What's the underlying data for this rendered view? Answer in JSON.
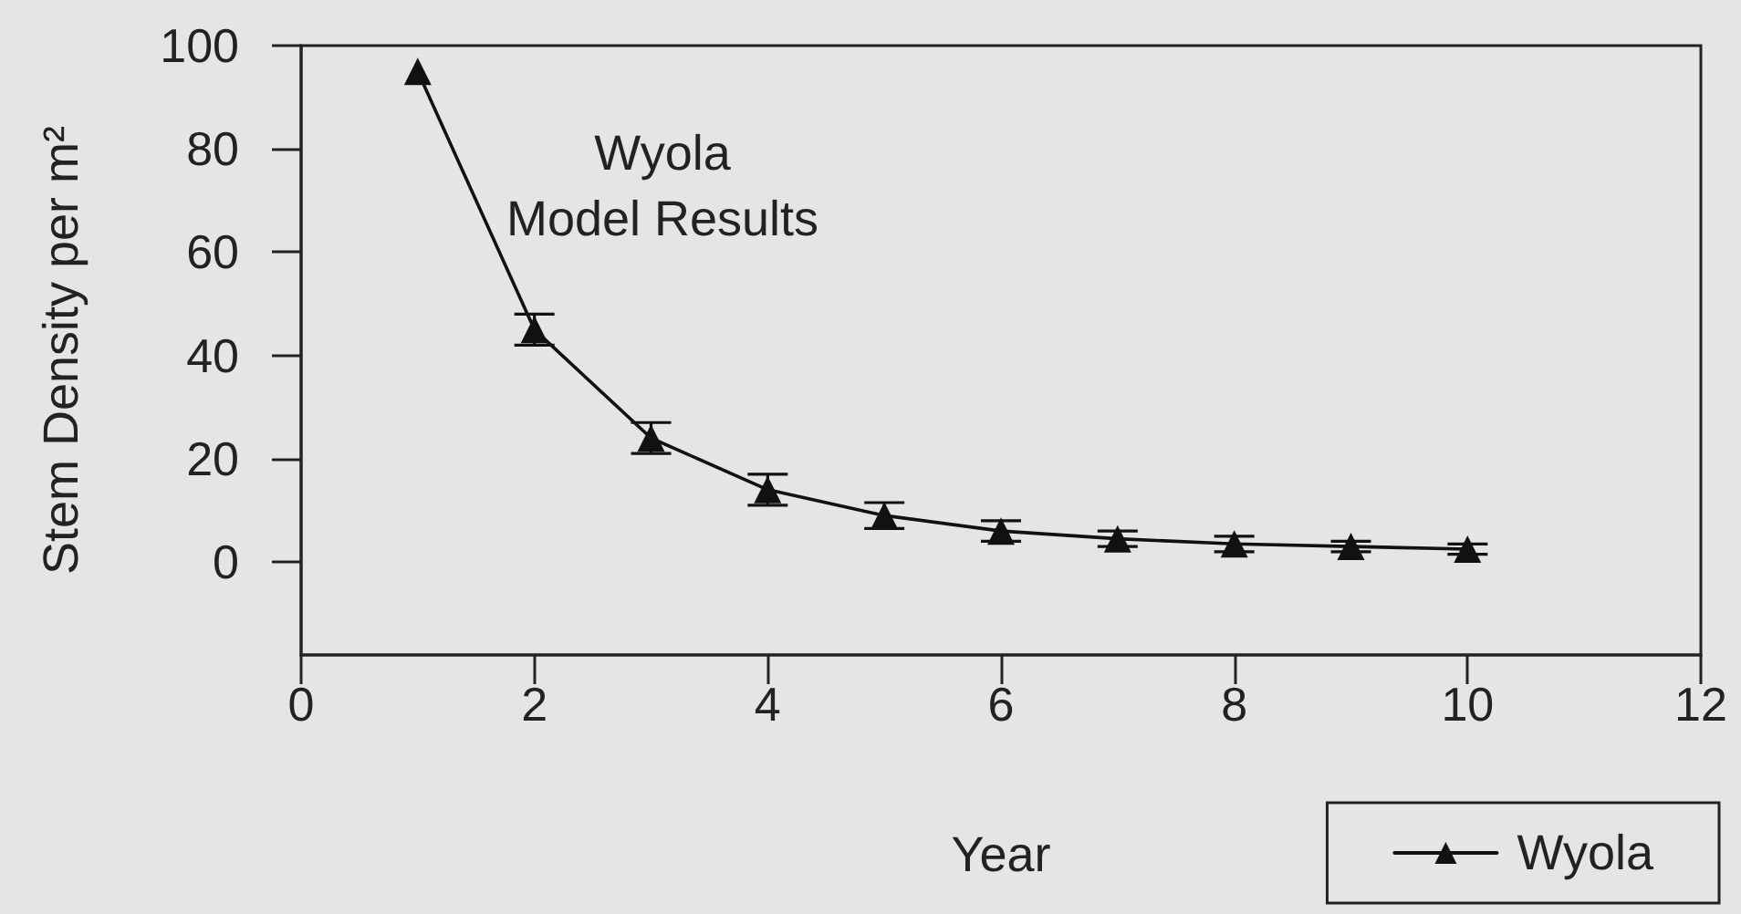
{
  "chart_data": {
    "type": "line",
    "xlabel": "Year",
    "ylabel": "Stem Density per m²",
    "annotations": [
      "Wyola\nModel Results"
    ],
    "x": [
      1,
      2,
      3,
      4,
      5,
      6,
      7,
      8,
      9,
      10
    ],
    "series": [
      {
        "name": "Wyola",
        "color": "#111111",
        "values": [
          95,
          45,
          24,
          14,
          9,
          6,
          4.5,
          3.5,
          3,
          2.5
        ],
        "errors": [
          null,
          3,
          3,
          3,
          2.5,
          2,
          1.5,
          1.5,
          1,
          1
        ]
      }
    ],
    "xlim": [
      0,
      12
    ],
    "xticks": [
      0,
      2,
      4,
      6,
      8,
      10,
      12
    ],
    "ylim": [
      -18,
      100
    ],
    "yticks": [
      0,
      20,
      40,
      60,
      80,
      100
    ],
    "grid": false,
    "legend": "bottom right",
    "marker": "triangle",
    "line_style": "solid"
  }
}
